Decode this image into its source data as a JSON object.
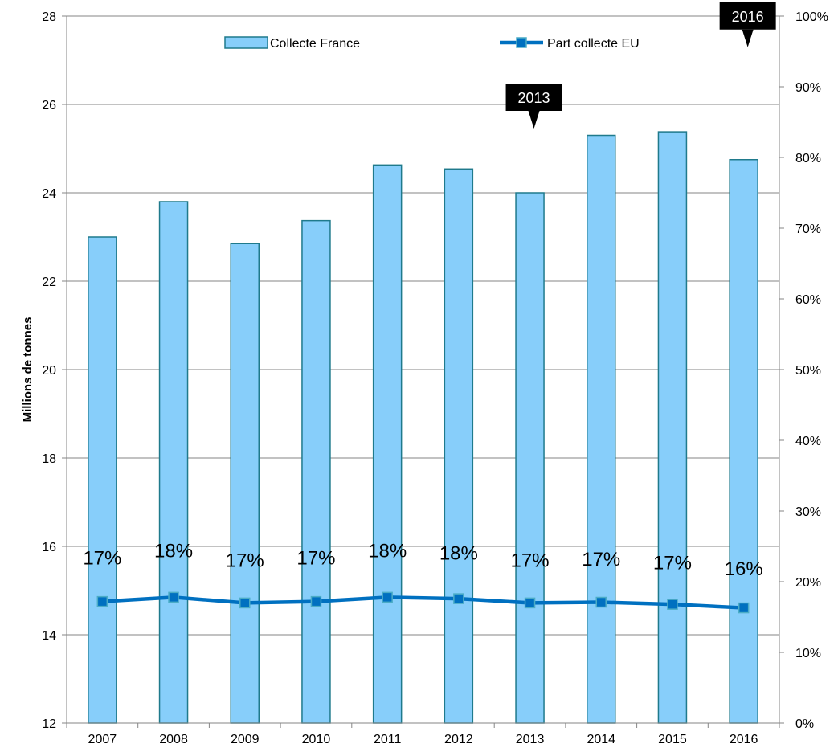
{
  "chart_data": {
    "type": "bar",
    "categories": [
      "2007",
      "2008",
      "2009",
      "2010",
      "2011",
      "2012",
      "2013",
      "2014",
      "2015",
      "2016"
    ],
    "series": [
      {
        "name": "Collecte France",
        "type": "bar",
        "axis": "left",
        "values": [
          23.0,
          23.8,
          22.85,
          23.37,
          24.63,
          24.54,
          24.0,
          25.3,
          25.38,
          24.75
        ]
      },
      {
        "name": "Part collecte EU",
        "type": "line",
        "axis": "right",
        "values": [
          0.172,
          0.178,
          0.17,
          0.172,
          0.178,
          0.176,
          0.17,
          0.171,
          0.168,
          0.163
        ],
        "labels": [
          "17%",
          "18%",
          "17%",
          "17%",
          "18%",
          "18%",
          "17%",
          "17%",
          "17%",
          "16%"
        ]
      }
    ],
    "ylabel": "Millions de tonnes",
    "ylim": [
      12,
      28
    ],
    "y_ticks": [
      "12",
      "14",
      "16",
      "18",
      "20",
      "22",
      "24",
      "26",
      "28"
    ],
    "y2lim": [
      0,
      1
    ],
    "y2_ticks": [
      "0%",
      "10%",
      "20%",
      "30%",
      "40%",
      "50%",
      "60%",
      "70%",
      "80%",
      "90%",
      "100%"
    ],
    "grid": true,
    "legend_position": "top",
    "annotations": [
      {
        "text": "2013",
        "category": "2013"
      },
      {
        "text": "2016",
        "category": "2016"
      }
    ],
    "colors": {
      "bar_fill": "#87CEFA",
      "bar_stroke": "#1F7A8C",
      "line": "#0070C0",
      "marker_fill": "#0070C0",
      "marker_stroke": "#4BACC6",
      "grid": "#868686",
      "callout_bg": "#000000"
    }
  }
}
